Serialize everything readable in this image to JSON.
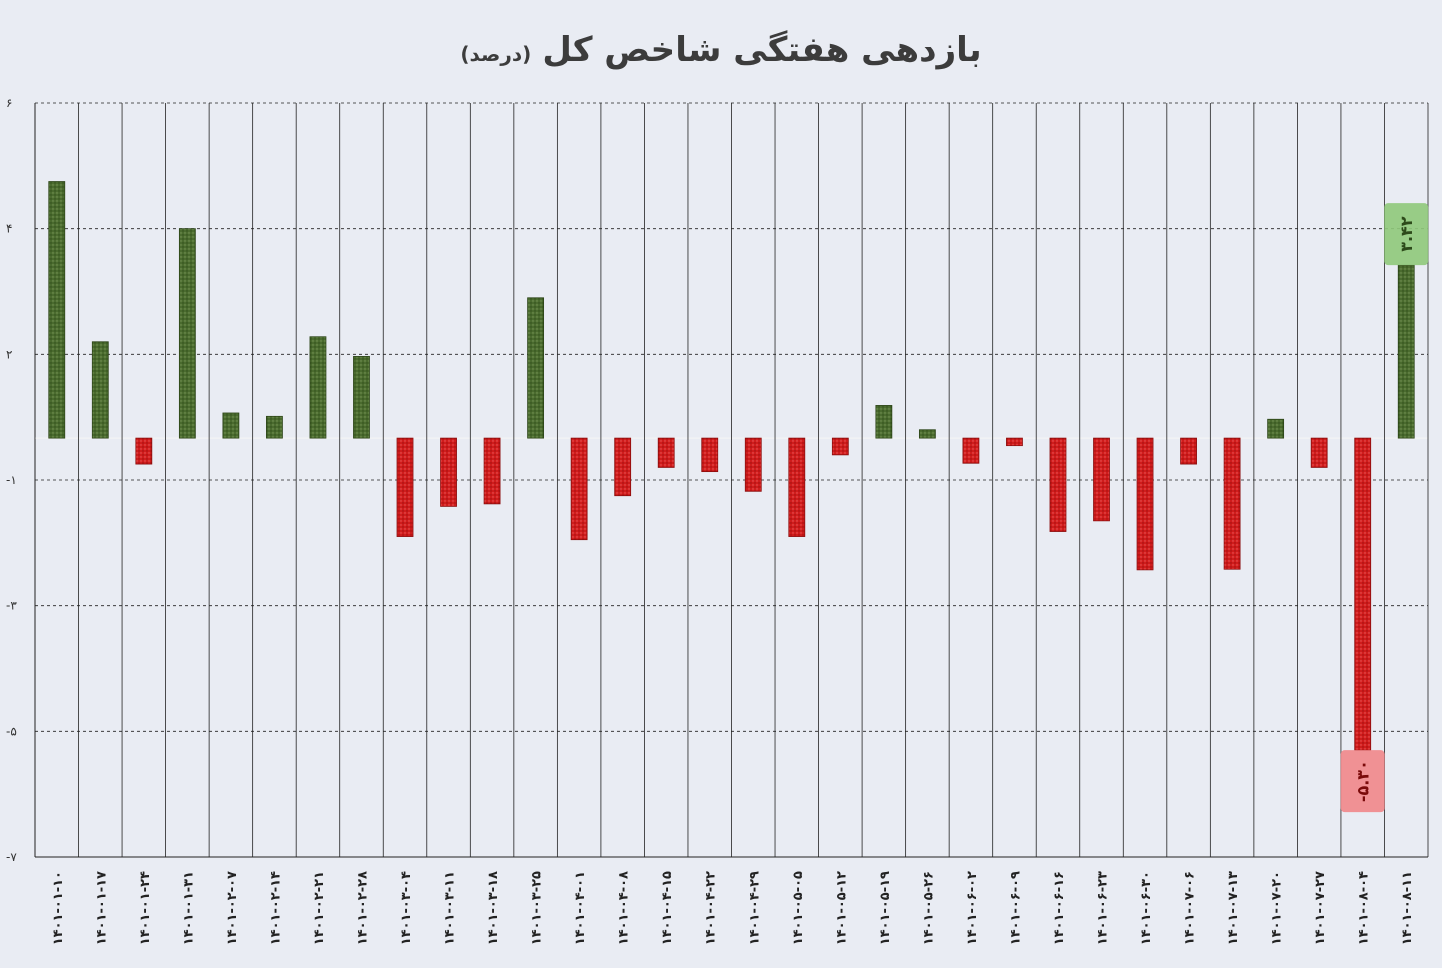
{
  "chart_data": {
    "type": "bar",
    "title": "بازدهی هفتگی شاخص کل",
    "subtitle": "(درصد)",
    "xlabel": "",
    "ylabel": "",
    "ylim": [
      -7,
      6
    ],
    "y_ticks": [
      6,
      4,
      2,
      -1,
      -3,
      -5,
      -7
    ],
    "y_tick_labels": [
      "۶",
      "۴",
      "۲",
      "-۱",
      "-۳",
      "-۵",
      "-۷"
    ],
    "grid": true,
    "categories": [
      "۱۴۰۱-۰۱-۱۰",
      "۱۴۰۱-۰۱-۱۷",
      "۱۴۰۱-۰۱-۲۴",
      "۱۴۰۱-۰۱-۳۱",
      "۱۴۰۱-۰۲-۰۷",
      "۱۴۰۱-۰۲-۱۴",
      "۱۴۰۱-۰۲-۲۱",
      "۱۴۰۱-۰۲-۲۸",
      "۱۴۰۱-۰۳-۰۴",
      "۱۴۰۱-۰۳-۱۱",
      "۱۴۰۱-۰۳-۱۸",
      "۱۴۰۱-۰۳-۲۵",
      "۱۴۰۱-۰۴-۰۱",
      "۱۴۰۱-۰۴-۰۸",
      "۱۴۰۱-۰۴-۱۵",
      "۱۴۰۱-۰۴-۲۲",
      "۱۴۰۱-۰۴-۲۹",
      "۱۴۰۱-۰۵-۰۵",
      "۱۴۰۱-۰۵-۱۲",
      "۱۴۰۱-۰۵-۱۹",
      "۱۴۰۱-۰۵-۲۶",
      "۱۴۰۱-۰۶-۰۲",
      "۱۴۰۱-۰۶-۰۹",
      "۱۴۰۱-۰۶-۱۶",
      "۱۴۰۱-۰۶-۲۳",
      "۱۴۰۱-۰۶-۳۰",
      "۱۴۰۱-۰۷-۰۶",
      "۱۴۰۱-۰۷-۱۳",
      "۱۴۰۱-۰۷-۲۰",
      "۱۴۰۱-۰۷-۲۷",
      "۱۴۰۱-۰۸-۰۴",
      "۱۴۰۱-۰۸-۱۱"
    ],
    "values": [
      4.75,
      2.2,
      -0.62,
      4.0,
      0.6,
      0.52,
      2.28,
      1.95,
      -1.9,
      -1.42,
      -1.38,
      2.9,
      -1.95,
      -1.25,
      -0.7,
      -0.8,
      -1.18,
      -1.9,
      -0.4,
      0.78,
      0.2,
      -0.6,
      -0.18,
      -1.82,
      -1.65,
      -2.43,
      -0.62,
      -2.42,
      0.45,
      -0.7,
      -5.3,
      3.42
    ],
    "annotations": [
      {
        "category": "۱۴۰۱-۰۸-۱۱",
        "label": "۳.۴۲"
      },
      {
        "category": "۱۴۰۱-۰۸-۰۴",
        "label": "-۵.۳۰"
      }
    ],
    "colors": {
      "positive": "#4a6b2e",
      "negative": "#d01c1c",
      "positive_label_bg": "#8fc97a",
      "negative_label_bg": "#f1878a"
    }
  }
}
